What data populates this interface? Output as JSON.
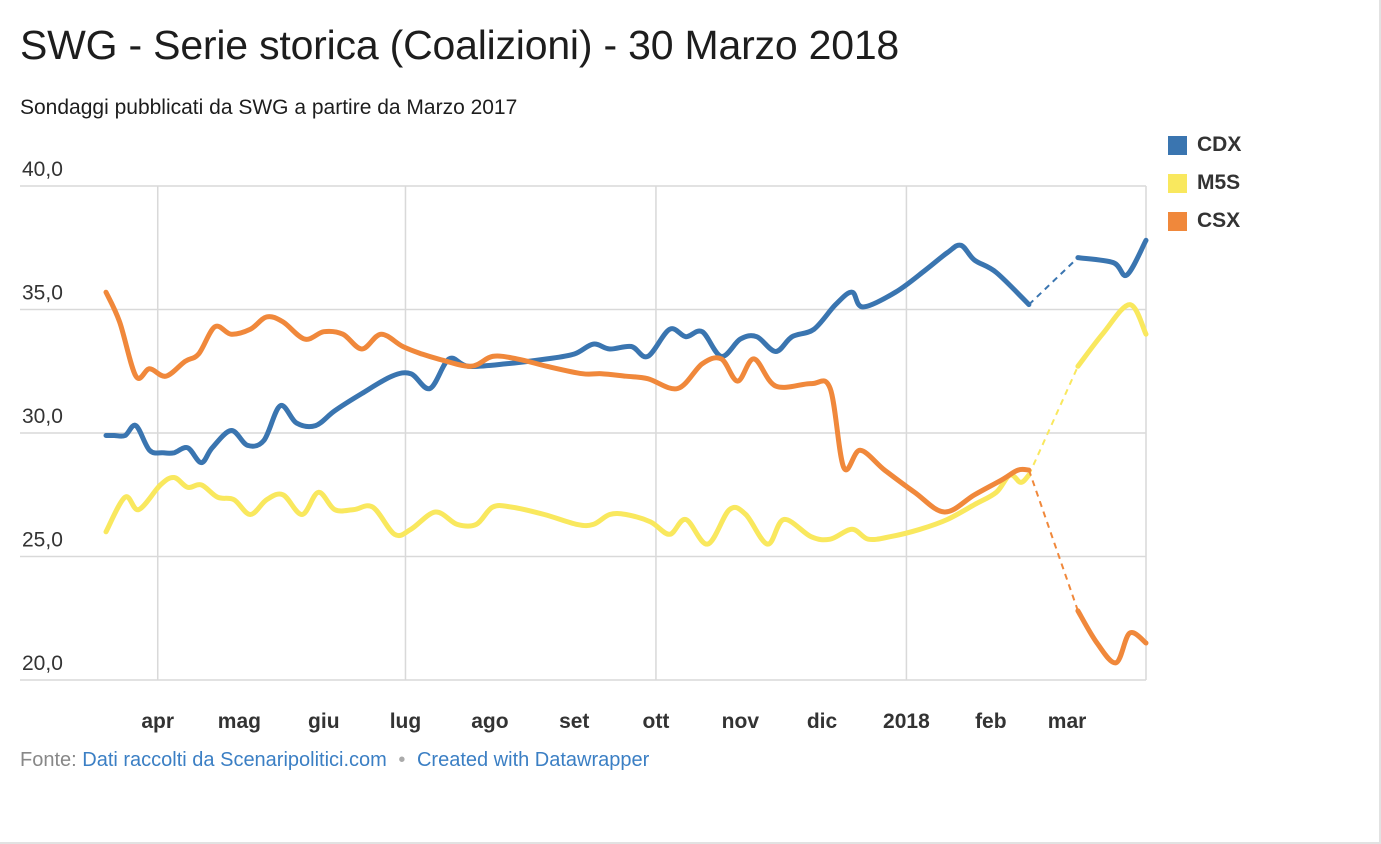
{
  "header": {
    "title": "SWG - Serie storica (Coalizioni) - 30 Marzo 2018",
    "subtitle": "Sondaggi pubblicati da SWG a partire da Marzo 2017"
  },
  "footer": {
    "source_label": "Fonte:",
    "source_link": "Dati raccolti da Scenaripolitici.com",
    "separator": "•",
    "credit_link": "Created with Datawrapper"
  },
  "colors": {
    "grid": "#d9d9d9",
    "axis_text": "#333333"
  },
  "chart_data": {
    "type": "line",
    "title": "SWG - Serie storica (Coalizioni) - 30 Marzo 2018",
    "subtitle": "Sondaggi pubblicati da SWG a partire da Marzo 2017",
    "xlabel": "",
    "ylabel": "",
    "ylim": [
      20,
      40
    ],
    "yticks": [
      {
        "value": 40,
        "label": "40,0"
      },
      {
        "value": 35,
        "label": "35,0"
      },
      {
        "value": 30,
        "label": "30,0"
      },
      {
        "value": 25,
        "label": "25,0"
      },
      {
        "value": 20,
        "label": "20,0"
      }
    ],
    "xlim": [
      "2017-03-13",
      "2018-03-30"
    ],
    "xticks": [
      {
        "date": "2017-04-01",
        "label": "apr"
      },
      {
        "date": "2017-05-01",
        "label": "mag"
      },
      {
        "date": "2017-06-01",
        "label": "giu"
      },
      {
        "date": "2017-07-01",
        "label": "lug"
      },
      {
        "date": "2017-08-01",
        "label": "ago"
      },
      {
        "date": "2017-09-01",
        "label": "set"
      },
      {
        "date": "2017-10-01",
        "label": "ott"
      },
      {
        "date": "2017-11-01",
        "label": "nov"
      },
      {
        "date": "2017-12-01",
        "label": "dic"
      },
      {
        "date": "2018-01-01",
        "label": "2018"
      },
      {
        "date": "2018-02-01",
        "label": "feb"
      },
      {
        "date": "2018-03-01",
        "label": "mar"
      }
    ],
    "vertical_grid_dates": [
      "2017-04-01",
      "2017-07-01",
      "2017-10-01",
      "2018-01-01",
      "2018-04-01"
    ],
    "grid": true,
    "legend_position": "top-right",
    "gap_after": "2018-02-15",
    "gap_before": "2018-03-05",
    "series": [
      {
        "name": "CDX",
        "color": "#3a75b0",
        "points": [
          [
            "2017-03-13",
            29.9
          ],
          [
            "2017-03-16",
            29.9
          ],
          [
            "2017-03-20",
            29.9
          ],
          [
            "2017-03-24",
            30.3
          ],
          [
            "2017-03-29",
            29.3
          ],
          [
            "2017-04-03",
            29.2
          ],
          [
            "2017-04-07",
            29.2
          ],
          [
            "2017-04-12",
            29.4
          ],
          [
            "2017-04-17",
            28.8
          ],
          [
            "2017-04-21",
            29.4
          ],
          [
            "2017-04-28",
            30.1
          ],
          [
            "2017-05-04",
            29.5
          ],
          [
            "2017-05-10",
            29.7
          ],
          [
            "2017-05-16",
            31.1
          ],
          [
            "2017-05-22",
            30.4
          ],
          [
            "2017-05-29",
            30.3
          ],
          [
            "2017-06-05",
            30.9
          ],
          [
            "2017-06-15",
            31.6
          ],
          [
            "2017-06-26",
            32.3
          ],
          [
            "2017-07-03",
            32.4
          ],
          [
            "2017-07-10",
            31.8
          ],
          [
            "2017-07-17",
            33.0
          ],
          [
            "2017-07-24",
            32.7
          ],
          [
            "2017-08-07",
            32.8
          ],
          [
            "2017-08-22",
            33.0
          ],
          [
            "2017-09-01",
            33.2
          ],
          [
            "2017-09-08",
            33.6
          ],
          [
            "2017-09-14",
            33.4
          ],
          [
            "2017-09-22",
            33.5
          ],
          [
            "2017-09-28",
            33.1
          ],
          [
            "2017-10-06",
            34.2
          ],
          [
            "2017-10-12",
            33.9
          ],
          [
            "2017-10-18",
            34.1
          ],
          [
            "2017-10-25",
            33.1
          ],
          [
            "2017-11-01",
            33.8
          ],
          [
            "2017-11-07",
            33.9
          ],
          [
            "2017-11-14",
            33.3
          ],
          [
            "2017-11-20",
            33.9
          ],
          [
            "2017-11-28",
            34.2
          ],
          [
            "2017-12-06",
            35.2
          ],
          [
            "2017-12-12",
            35.7
          ],
          [
            "2017-12-16",
            35.1
          ],
          [
            "2017-12-28",
            35.7
          ],
          [
            "2018-01-08",
            36.6
          ],
          [
            "2018-01-16",
            37.3
          ],
          [
            "2018-01-21",
            37.6
          ],
          [
            "2018-01-26",
            37.0
          ],
          [
            "2018-02-03",
            36.5
          ],
          [
            "2018-02-15",
            35.2
          ],
          [
            "2018-03-05",
            37.1
          ],
          [
            "2018-03-18",
            36.9
          ],
          [
            "2018-03-23",
            36.4
          ],
          [
            "2018-03-30",
            37.8
          ]
        ]
      },
      {
        "name": "M5S",
        "color": "#f9e85e",
        "points": [
          [
            "2017-03-13",
            26.0
          ],
          [
            "2017-03-20",
            27.4
          ],
          [
            "2017-03-25",
            26.9
          ],
          [
            "2017-04-02",
            27.9
          ],
          [
            "2017-04-07",
            28.2
          ],
          [
            "2017-04-12",
            27.8
          ],
          [
            "2017-04-17",
            27.9
          ],
          [
            "2017-04-23",
            27.4
          ],
          [
            "2017-04-29",
            27.3
          ],
          [
            "2017-05-05",
            26.7
          ],
          [
            "2017-05-11",
            27.3
          ],
          [
            "2017-05-17",
            27.5
          ],
          [
            "2017-05-24",
            26.7
          ],
          [
            "2017-05-30",
            27.6
          ],
          [
            "2017-06-05",
            26.9
          ],
          [
            "2017-06-12",
            26.9
          ],
          [
            "2017-06-19",
            27.0
          ],
          [
            "2017-06-27",
            25.9
          ],
          [
            "2017-07-03",
            26.1
          ],
          [
            "2017-07-12",
            26.8
          ],
          [
            "2017-07-20",
            26.3
          ],
          [
            "2017-07-27",
            26.3
          ],
          [
            "2017-08-02",
            27.0
          ],
          [
            "2017-08-09",
            27.0
          ],
          [
            "2017-08-21",
            26.7
          ],
          [
            "2017-09-02",
            26.3
          ],
          [
            "2017-09-08",
            26.3
          ],
          [
            "2017-09-14",
            26.7
          ],
          [
            "2017-09-20",
            26.7
          ],
          [
            "2017-09-29",
            26.4
          ],
          [
            "2017-10-06",
            25.9
          ],
          [
            "2017-10-12",
            26.5
          ],
          [
            "2017-10-20",
            25.5
          ],
          [
            "2017-10-28",
            26.9
          ],
          [
            "2017-11-03",
            26.7
          ],
          [
            "2017-11-11",
            25.5
          ],
          [
            "2017-11-17",
            26.5
          ],
          [
            "2017-11-27",
            25.8
          ],
          [
            "2017-12-04",
            25.7
          ],
          [
            "2017-12-12",
            26.1
          ],
          [
            "2017-12-18",
            25.7
          ],
          [
            "2017-12-26",
            25.8
          ],
          [
            "2018-01-06",
            26.1
          ],
          [
            "2018-01-16",
            26.5
          ],
          [
            "2018-01-26",
            27.1
          ],
          [
            "2018-02-03",
            27.6
          ],
          [
            "2018-02-08",
            28.3
          ],
          [
            "2018-02-12",
            28.0
          ],
          [
            "2018-02-15",
            28.3
          ],
          [
            "2018-03-05",
            32.7
          ],
          [
            "2018-03-14",
            34.0
          ],
          [
            "2018-03-24",
            35.2
          ],
          [
            "2018-03-30",
            34.0
          ]
        ]
      },
      {
        "name": "CSX",
        "color": "#f0883b",
        "points": [
          [
            "2017-03-13",
            35.7
          ],
          [
            "2017-03-18",
            34.5
          ],
          [
            "2017-03-24",
            32.3
          ],
          [
            "2017-03-29",
            32.6
          ],
          [
            "2017-04-04",
            32.3
          ],
          [
            "2017-04-11",
            32.9
          ],
          [
            "2017-04-16",
            33.2
          ],
          [
            "2017-04-22",
            34.3
          ],
          [
            "2017-04-28",
            34.0
          ],
          [
            "2017-05-05",
            34.2
          ],
          [
            "2017-05-11",
            34.7
          ],
          [
            "2017-05-17",
            34.5
          ],
          [
            "2017-05-25",
            33.8
          ],
          [
            "2017-06-01",
            34.1
          ],
          [
            "2017-06-08",
            34.0
          ],
          [
            "2017-06-15",
            33.4
          ],
          [
            "2017-06-22",
            34.0
          ],
          [
            "2017-06-30",
            33.5
          ],
          [
            "2017-07-07",
            33.2
          ],
          [
            "2017-07-13",
            33.0
          ],
          [
            "2017-07-25",
            32.7
          ],
          [
            "2017-08-02",
            33.1
          ],
          [
            "2017-08-11",
            33.0
          ],
          [
            "2017-08-22",
            32.7
          ],
          [
            "2017-09-04",
            32.4
          ],
          [
            "2017-09-11",
            32.4
          ],
          [
            "2017-09-20",
            32.3
          ],
          [
            "2017-09-28",
            32.2
          ],
          [
            "2017-10-09",
            31.8
          ],
          [
            "2017-10-18",
            32.8
          ],
          [
            "2017-10-25",
            33.0
          ],
          [
            "2017-10-31",
            32.1
          ],
          [
            "2017-11-06",
            33.0
          ],
          [
            "2017-11-14",
            31.9
          ],
          [
            "2017-11-27",
            32.0
          ],
          [
            "2017-12-04",
            31.8
          ],
          [
            "2017-12-09",
            28.6
          ],
          [
            "2017-12-15",
            29.3
          ],
          [
            "2017-12-24",
            28.5
          ],
          [
            "2018-01-04",
            27.6
          ],
          [
            "2018-01-15",
            26.8
          ],
          [
            "2018-01-26",
            27.5
          ],
          [
            "2018-02-05",
            28.1
          ],
          [
            "2018-02-11",
            28.5
          ],
          [
            "2018-02-15",
            28.5
          ],
          [
            "2018-03-05",
            22.8
          ],
          [
            "2018-03-12",
            21.5
          ],
          [
            "2018-03-19",
            20.7
          ],
          [
            "2018-03-24",
            21.9
          ],
          [
            "2018-03-30",
            21.5
          ]
        ]
      }
    ]
  }
}
